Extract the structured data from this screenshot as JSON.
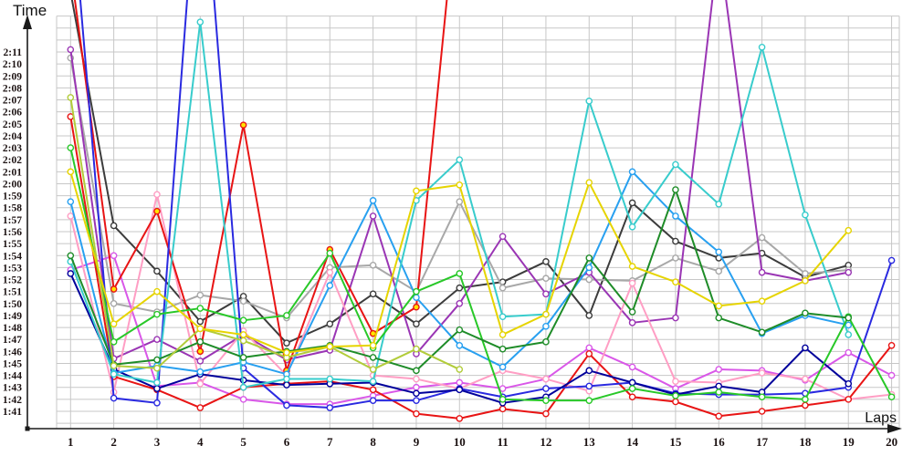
{
  "chart_data": {
    "type": "line",
    "title": "",
    "xlabel": "Laps",
    "ylabel": "Time",
    "x_ticks": [
      "1",
      "2",
      "3",
      "4",
      "5",
      "6",
      "7",
      "8",
      "9",
      "10",
      "11",
      "12",
      "13",
      "14",
      "15",
      "16",
      "17",
      "18",
      "19",
      "20"
    ],
    "y_tick_labels": [
      "2:11",
      "2:10",
      "2:09",
      "2:08",
      "2:07",
      "2:06",
      "2:05",
      "2:04",
      "2:03",
      "2:02",
      "2:01",
      "2:00",
      "1:59",
      "1:58",
      "1:57",
      "1:56",
      "1:55",
      "1:54",
      "1:53",
      "1:52",
      "1:51",
      "1:50",
      "1:49",
      "1:48",
      "1:47",
      "1:46",
      "1:45",
      "1:44",
      "1:43",
      "1:42",
      "1:41"
    ],
    "y_axis": {
      "labeled_min_seconds": 101,
      "labeled_max_seconds": 131,
      "grid_step_seconds": 1,
      "grid_on": true
    },
    "x_axis": {
      "min_lap": 1,
      "max_lap": 20,
      "grid_on": true
    },
    "legend": "none",
    "note_units": "series values are lap times in seconds (101 = 1:41); values above 134 are clipped off the top of the plot",
    "series": [
      {
        "name": "dark-gray",
        "color": "#3c3c3c",
        "marker_fill": "#ffffff",
        "values_seconds": [
          136,
          116.5,
          112.7,
          108.5,
          110.6,
          106.7,
          108.3,
          110.8,
          108.3,
          111.3,
          111.8,
          113.5,
          109.0,
          118.4,
          115.2,
          113.8,
          114.2,
          112.2,
          113.2
        ]
      },
      {
        "name": "silver-gray",
        "color": "#a8a8a8",
        "marker_fill": "#ffffff",
        "values_seconds": [
          130.5,
          110.0,
          109.3,
          110.7,
          110.2,
          108.8,
          113.0,
          113.2,
          111.0,
          118.5,
          111.3,
          112.1,
          112.0,
          111.9,
          113.8,
          112.7,
          115.5,
          112.5,
          112.8
        ]
      },
      {
        "name": "purple",
        "color": "#9a35b4",
        "marker_fill": "#ffffff",
        "values_seconds": [
          131.2,
          105.4,
          107.0,
          105.2,
          107.4,
          105.3,
          106.1,
          117.3,
          105.8,
          110.0,
          115.6,
          110.8,
          112.6,
          108.4,
          108.8,
          140,
          112.6,
          111.9,
          112.6
        ]
      },
      {
        "name": "magenta",
        "color": "#d957e8",
        "marker_fill": "#ffffff",
        "values_seconds": [
          112.8,
          114.0,
          103.1,
          103.4,
          102.0,
          101.6,
          101.6,
          102.3,
          103.0,
          103.4,
          102.9,
          103.7,
          106.3,
          104.7,
          102.9,
          104.5,
          104.4,
          103.6,
          105.9,
          104.0
        ]
      },
      {
        "name": "pink",
        "color": "#ff9ec4",
        "marker_fill": "#ffffff",
        "values_seconds": [
          117.3,
          102.6,
          119.1,
          103.3,
          107.7,
          104.0,
          112.6,
          104.0,
          103.7,
          102.9,
          104.4,
          103.7,
          102.7,
          111.7,
          103.5,
          103.4,
          104.2,
          103.7,
          102.0,
          102.4
        ]
      },
      {
        "name": "red-spiky",
        "color": "#e81414",
        "marker_fill": "#ffe400",
        "values_seconds": [
          138,
          111.2,
          117.7,
          106.0,
          124.9,
          104.4,
          114.5,
          107.5,
          109.7,
          146
        ]
      },
      {
        "name": "red-flat",
        "color": "#e81414",
        "marker_fill": "#ffffff",
        "values_seconds": [
          125.6,
          103.9,
          102.8,
          101.3,
          103.0,
          103.3,
          103.5,
          102.8,
          100.8,
          100.4,
          101.2,
          100.8,
          105.8,
          102.2,
          101.8,
          100.6,
          101.0,
          101.5,
          102.0,
          106.5
        ]
      },
      {
        "name": "blue",
        "color": "#2a2ae0",
        "marker_fill": "#ffffff",
        "values_seconds": [
          145,
          102.1,
          101.7,
          150,
          104.6,
          101.5,
          101.3,
          101.9,
          101.9,
          102.9,
          102.2,
          102.9,
          103.1,
          103.4,
          102.5,
          102.4,
          102.4,
          102.5,
          103.0,
          113.6
        ]
      },
      {
        "name": "navy",
        "color": "#00009b",
        "marker_fill": "#ffffff",
        "values_seconds": [
          112.5,
          104.5,
          102.9,
          104.1,
          103.6,
          103.2,
          103.3,
          103.4,
          102.5,
          102.8,
          101.7,
          102.2,
          104.4,
          103.4,
          102.4,
          103.1,
          102.6,
          106.3,
          103.3
        ]
      },
      {
        "name": "sky-blue",
        "color": "#28a0f0",
        "marker_fill": "#ffffff",
        "values_seconds": [
          118.5,
          104.2,
          104.8,
          104.3,
          105.1,
          104.1,
          111.5,
          118.6,
          110.5,
          106.5,
          104.7,
          108.1,
          113.0,
          121.0,
          117.3,
          114.3,
          107.5,
          109.0,
          108.2
        ]
      },
      {
        "name": "cyan",
        "color": "#38cccc",
        "marker_fill": "#ffffff",
        "values_seconds": [
          113.5,
          104.1,
          103.4,
          133.5,
          103.0,
          103.7,
          103.7,
          103.5,
          118.6,
          122.0,
          108.9,
          109.1,
          126.9,
          116.4,
          121.6,
          118.3,
          131.4,
          117.4,
          107.4
        ]
      },
      {
        "name": "green",
        "color": "#28c828",
        "marker_fill": "#ffffff",
        "values_seconds": [
          123.0,
          106.8,
          109.1,
          109.6,
          108.6,
          109.0,
          114.2,
          106.3,
          111.0,
          112.5,
          102.0,
          101.9,
          101.9,
          102.9,
          102.3,
          102.6,
          102.2,
          102.0,
          108.9,
          102.2
        ]
      },
      {
        "name": "dark-green",
        "color": "#1e8c28",
        "marker_fill": "#ffffff",
        "values_seconds": [
          114.0,
          104.9,
          105.3,
          106.8,
          105.5,
          106.0,
          106.5,
          105.5,
          104.4,
          107.8,
          106.2,
          106.8,
          113.8,
          109.3,
          119.5,
          108.8,
          107.6,
          109.2,
          108.8
        ]
      },
      {
        "name": "lime",
        "color": "#b2cc3a",
        "marker_fill": "#ffffff",
        "values_seconds": [
          127.2,
          104.8,
          104.6,
          107.9,
          106.9,
          105.5,
          106.4,
          104.5,
          106.2,
          104.5
        ]
      },
      {
        "name": "yellow",
        "color": "#e6d400",
        "marker_fill": "#ffffff",
        "values_seconds": [
          121.0,
          108.3,
          111.0,
          107.9,
          107.4,
          105.9,
          106.4,
          106.5,
          119.4,
          119.9,
          107.4,
          109.1,
          120.1,
          113.1,
          111.8,
          109.8,
          110.2,
          111.9,
          116.1
        ]
      }
    ]
  },
  "labels": {
    "y_axis_title": "Time",
    "x_axis_title": "Laps"
  }
}
